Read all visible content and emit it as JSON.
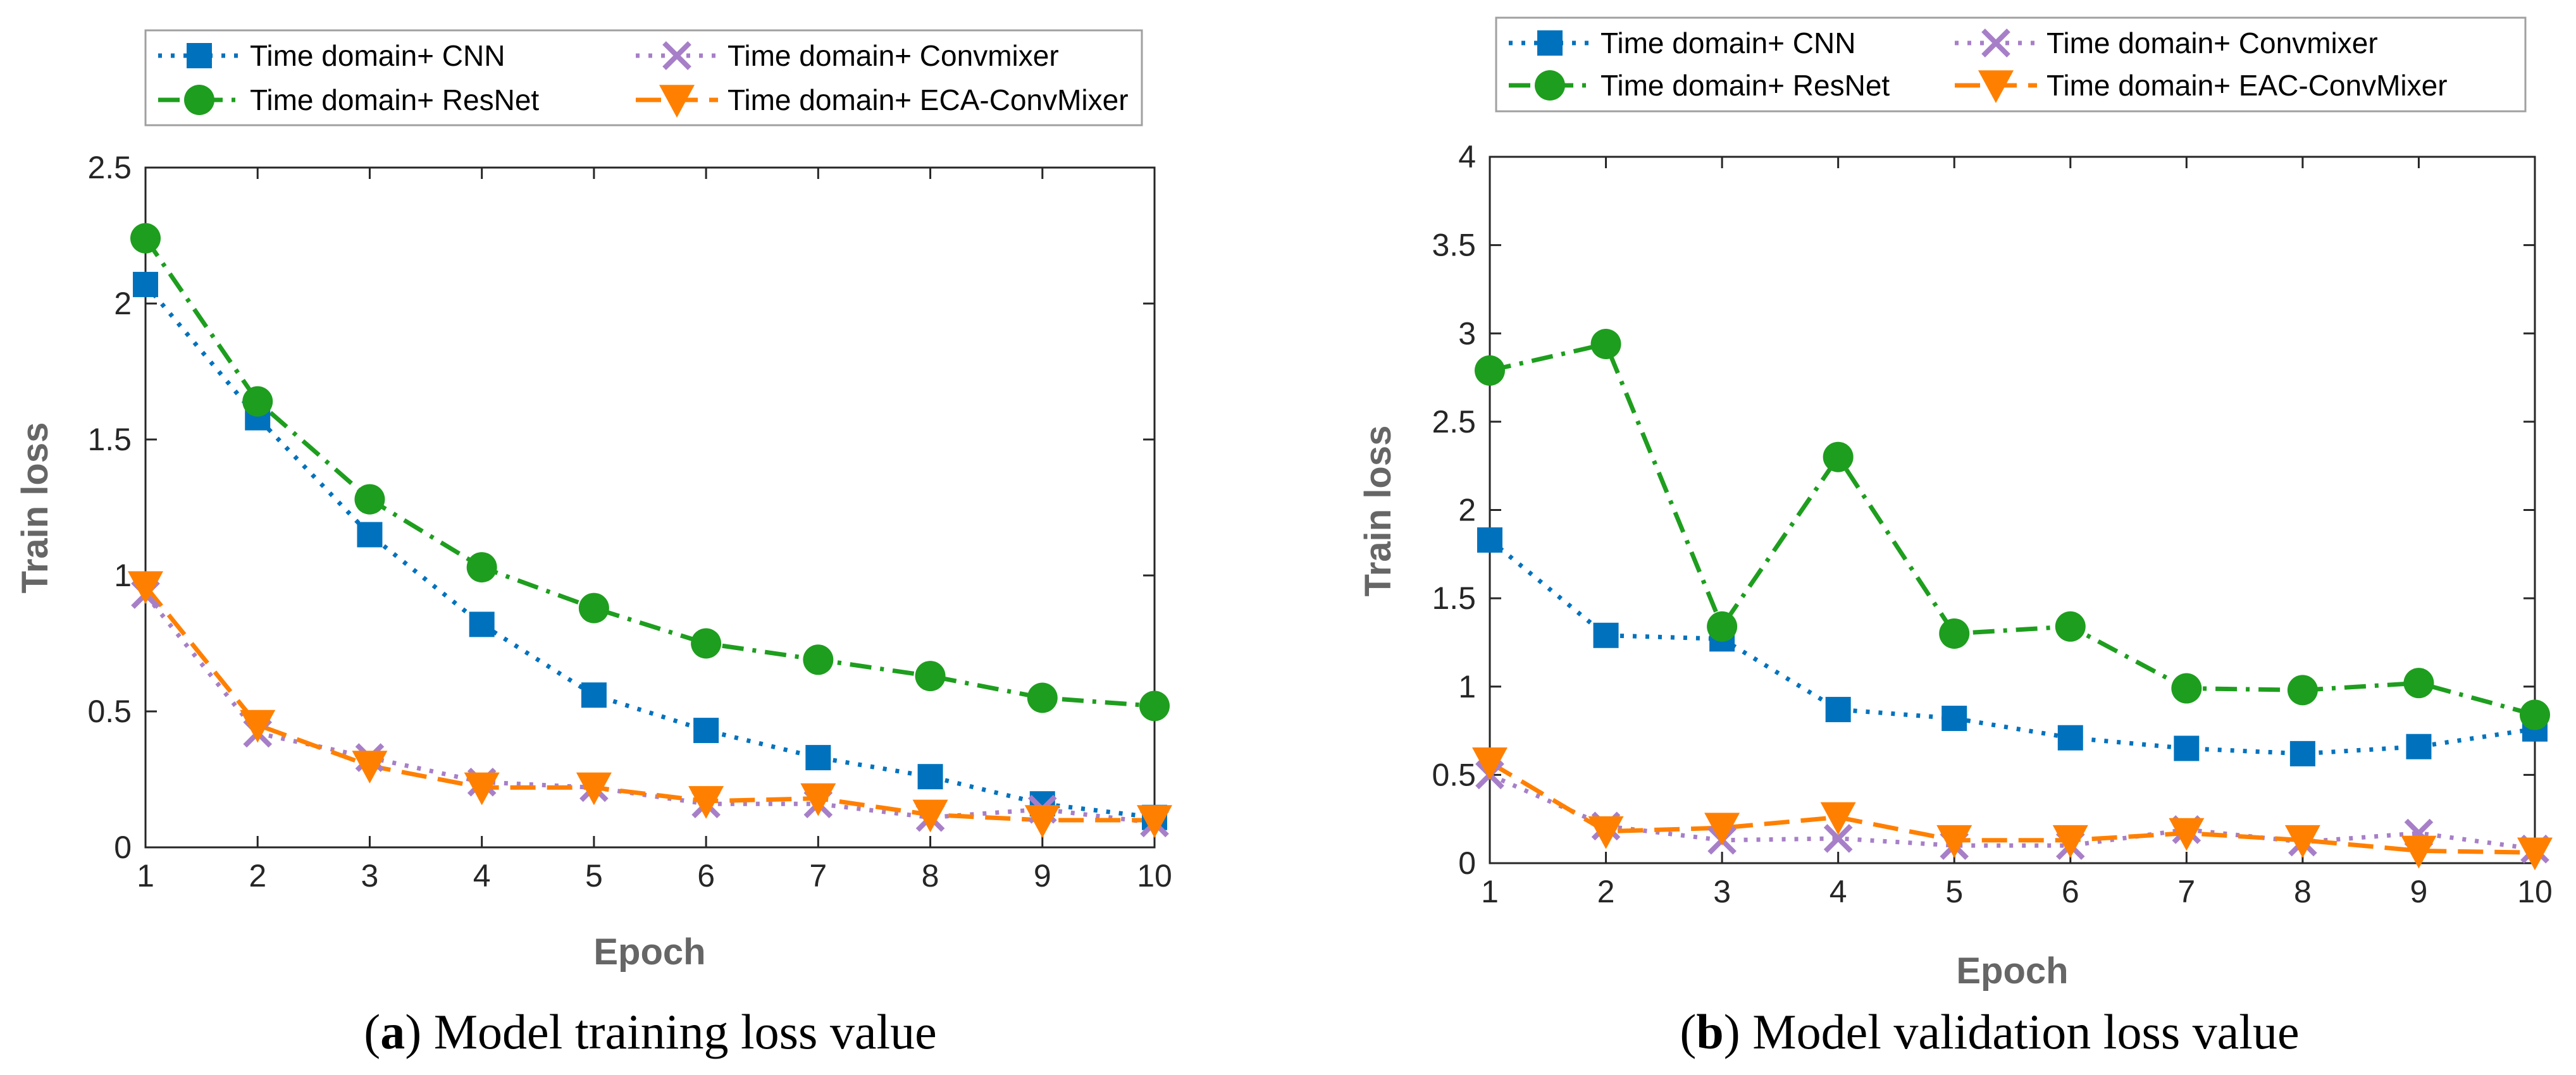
{
  "chart_data": [
    {
      "type": "line",
      "panel_label": "a",
      "caption": "Model training loss value",
      "xlabel": "Epoch",
      "ylabel": "Train loss",
      "xlim": [
        1,
        10
      ],
      "ylim": [
        0,
        2.5
      ],
      "xticks": [
        "1",
        "2",
        "3",
        "4",
        "5",
        "6",
        "7",
        "8",
        "9",
        "10"
      ],
      "yticks": [
        "0",
        "0.5",
        "1",
        "1.5",
        "2",
        "2.5"
      ],
      "x": [
        1,
        2,
        3,
        4,
        5,
        6,
        7,
        8,
        9,
        10
      ],
      "legend": "top (above plot, 2 columns)",
      "series": [
        {
          "name": "Time domain+ CNN",
          "color": "#0072BD",
          "marker": "square",
          "line": "dotted",
          "values": [
            2.07,
            1.58,
            1.15,
            0.82,
            0.56,
            0.43,
            0.33,
            0.26,
            0.16,
            0.11
          ]
        },
        {
          "name": "Time domain+ ResNet",
          "color": "#1E9E1E",
          "marker": "circle",
          "line": "dashdot",
          "values": [
            2.24,
            1.64,
            1.28,
            1.03,
            0.88,
            0.75,
            0.69,
            0.63,
            0.55,
            0.52
          ]
        },
        {
          "name": "Time domain+ Convmixer",
          "color": "#A77FC8",
          "marker": "x",
          "line": "dotted",
          "values": [
            0.93,
            0.42,
            0.33,
            0.24,
            0.22,
            0.16,
            0.16,
            0.11,
            0.14,
            0.09
          ]
        },
        {
          "name": "Time domain+ ECA-ConvMixer",
          "color": "#FF8000",
          "marker": "triangle-down",
          "line": "dashed",
          "values": [
            0.96,
            0.45,
            0.3,
            0.22,
            0.22,
            0.17,
            0.18,
            0.12,
            0.1,
            0.1
          ]
        }
      ]
    },
    {
      "type": "line",
      "panel_label": "b",
      "caption": "Model validation loss value",
      "xlabel": "Epoch",
      "ylabel": "Train loss",
      "xlim": [
        1,
        10
      ],
      "ylim": [
        0,
        4
      ],
      "xticks": [
        "1",
        "2",
        "3",
        "4",
        "5",
        "6",
        "7",
        "8",
        "9",
        "10"
      ],
      "yticks": [
        "0",
        "0.5",
        "1",
        "1.5",
        "2",
        "2.5",
        "3",
        "3.5",
        "4"
      ],
      "x": [
        1,
        2,
        3,
        4,
        5,
        6,
        7,
        8,
        9,
        10
      ],
      "legend": "top (above plot, 2 columns)",
      "series": [
        {
          "name": "Time domain+ CNN",
          "color": "#0072BD",
          "marker": "square",
          "line": "dotted",
          "values": [
            1.83,
            1.29,
            1.27,
            0.87,
            0.82,
            0.71,
            0.65,
            0.62,
            0.66,
            0.76
          ]
        },
        {
          "name": "Time domain+ ResNet",
          "color": "#1E9E1E",
          "marker": "circle",
          "line": "dashdot",
          "values": [
            2.79,
            2.94,
            1.34,
            2.3,
            1.3,
            1.34,
            0.99,
            0.98,
            1.02,
            0.84
          ]
        },
        {
          "name": "Time domain+ Convmixer",
          "color": "#A77FC8",
          "marker": "x",
          "line": "dotted",
          "values": [
            0.5,
            0.21,
            0.13,
            0.14,
            0.1,
            0.1,
            0.19,
            0.12,
            0.17,
            0.08
          ]
        },
        {
          "name": "Time domain+ EAC-ConvMixer",
          "color": "#FF8000",
          "marker": "triangle-down",
          "line": "dashed",
          "values": [
            0.57,
            0.18,
            0.2,
            0.26,
            0.13,
            0.13,
            0.17,
            0.13,
            0.07,
            0.06
          ]
        }
      ]
    }
  ]
}
